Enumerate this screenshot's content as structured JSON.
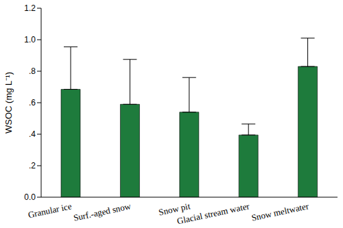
{
  "chart_data": {
    "type": "bar",
    "y_label": "WSOC (mg L⁻¹)",
    "categories": [
      "Granular ice",
      "Surf.-aged snow",
      "Snow pit",
      "Glacial stream water",
      "Snow meltwater"
    ],
    "values": [
      0.685,
      0.59,
      0.54,
      0.395,
      0.83
    ],
    "errors": [
      0.27,
      0.285,
      0.22,
      0.07,
      0.18
    ],
    "color": "#1e7b3c",
    "ylim": [
      0,
      1.2
    ],
    "yticks": [
      {
        "value": 0,
        "label": "0.0"
      },
      {
        "value": 0.2,
        "label": ".2"
      },
      {
        "value": 0.4,
        "label": ".4"
      },
      {
        "value": 0.6,
        "label": ".6"
      },
      {
        "value": 0.8,
        "label": ".8"
      },
      {
        "value": 1.0,
        "label": "1.0"
      },
      1.2
    ],
    "grid": false
  }
}
